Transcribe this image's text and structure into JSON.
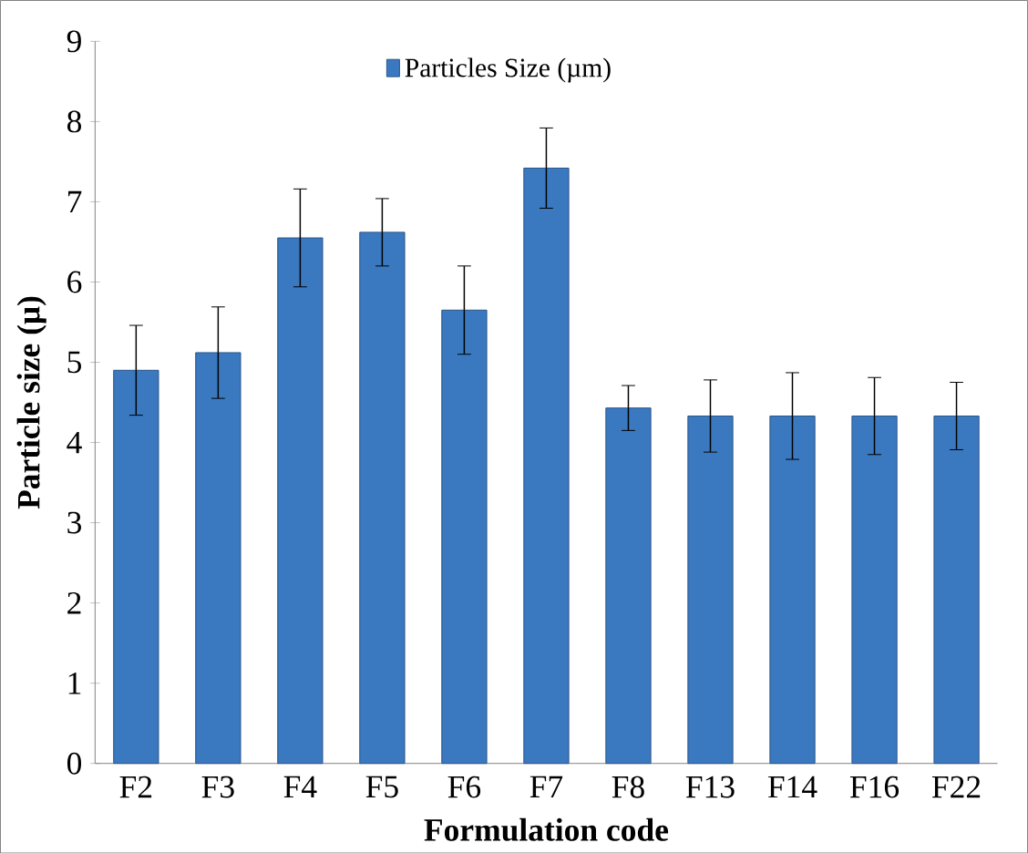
{
  "chart_data": {
    "type": "bar",
    "xlabel": "Formulation code",
    "ylabel": "Particle size (μ)",
    "categories": [
      "F2",
      "F3",
      "F4",
      "F5",
      "F6",
      "F7",
      "F8",
      "F13",
      "F14",
      "F16",
      "F22"
    ],
    "series": [
      {
        "name": "Particles Size (µm)",
        "color": "#3a78c0",
        "values": [
          4.9,
          5.12,
          6.55,
          6.62,
          5.65,
          7.42,
          4.43,
          4.33,
          4.33,
          4.33,
          4.33
        ],
        "errors": [
          0.56,
          0.57,
          0.61,
          0.42,
          0.55,
          0.5,
          0.28,
          0.45,
          0.54,
          0.48,
          0.42
        ]
      }
    ],
    "ylim": [
      0,
      9
    ],
    "yticks": [
      0,
      1,
      2,
      3,
      4,
      5,
      6,
      7,
      8,
      9
    ],
    "grid": false,
    "legend": "top"
  }
}
